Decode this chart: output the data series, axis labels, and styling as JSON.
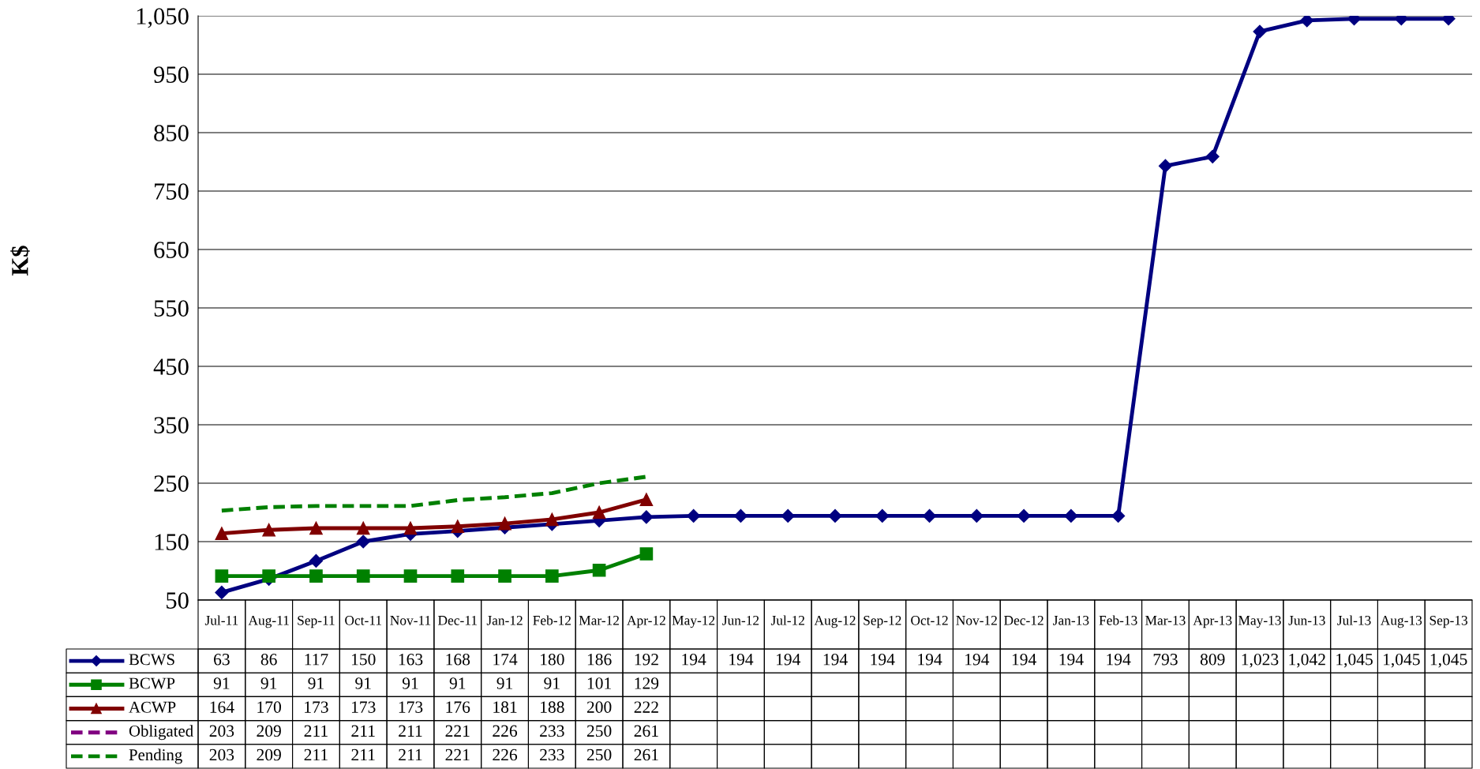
{
  "chart_data": {
    "type": "line",
    "ylabel": "K$",
    "categories": [
      "Jul-11",
      "Aug-11",
      "Sep-11",
      "Oct-11",
      "Nov-11",
      "Dec-11",
      "Jan-12",
      "Feb-12",
      "Mar-12",
      "Apr-12",
      "May-12",
      "Jun-12",
      "Jul-12",
      "Aug-12",
      "Sep-12",
      "Oct-12",
      "Nov-12",
      "Dec-12",
      "Jan-13",
      "Feb-13",
      "Mar-13",
      "Apr-13",
      "May-13",
      "Jun-13",
      "Jul-13",
      "Aug-13",
      "Sep-13"
    ],
    "series": [
      {
        "name": "BCWS",
        "color": "#000080",
        "marker": "diamond",
        "line_style": "solid",
        "values": [
          63,
          86,
          117,
          150,
          163,
          168,
          174,
          180,
          186,
          192,
          194,
          194,
          194,
          194,
          194,
          194,
          194,
          194,
          194,
          194,
          793,
          809,
          1023,
          1042,
          1045,
          1045,
          1045
        ],
        "value_labels": [
          "63",
          "86",
          "117",
          "150",
          "163",
          "168",
          "174",
          "180",
          "186",
          "192",
          "194",
          "194",
          "194",
          "194",
          "194",
          "194",
          "194",
          "194",
          "194",
          "194",
          "793",
          "809",
          "1,023",
          "1,042",
          "1,045",
          "1,045",
          "1,045"
        ]
      },
      {
        "name": "BCWP",
        "color": "#008000",
        "marker": "square",
        "line_style": "solid",
        "values": [
          91,
          91,
          91,
          91,
          91,
          91,
          91,
          91,
          101,
          129,
          null,
          null,
          null,
          null,
          null,
          null,
          null,
          null,
          null,
          null,
          null,
          null,
          null,
          null,
          null,
          null,
          null
        ],
        "value_labels": [
          "91",
          "91",
          "91",
          "91",
          "91",
          "91",
          "91",
          "91",
          "101",
          "129",
          null,
          null,
          null,
          null,
          null,
          null,
          null,
          null,
          null,
          null,
          null,
          null,
          null,
          null,
          null,
          null,
          null
        ]
      },
      {
        "name": "ACWP",
        "color": "#800000",
        "marker": "triangle",
        "line_style": "solid",
        "values": [
          164,
          170,
          173,
          173,
          173,
          176,
          181,
          188,
          200,
          222,
          null,
          null,
          null,
          null,
          null,
          null,
          null,
          null,
          null,
          null,
          null,
          null,
          null,
          null,
          null,
          null,
          null
        ],
        "value_labels": [
          "164",
          "170",
          "173",
          "173",
          "173",
          "176",
          "181",
          "188",
          "200",
          "222",
          null,
          null,
          null,
          null,
          null,
          null,
          null,
          null,
          null,
          null,
          null,
          null,
          null,
          null,
          null,
          null,
          null
        ]
      },
      {
        "name": "Obligated",
        "color": "#800080",
        "marker": "none",
        "line_style": "dashed",
        "values": [
          null,
          null,
          null,
          null,
          null,
          null,
          null,
          null,
          null,
          null,
          null,
          null,
          null,
          null,
          null,
          null,
          null,
          null,
          null,
          null,
          null,
          null,
          null,
          null,
          null,
          null,
          null
        ],
        "value_labels": [
          "203",
          "209",
          "211",
          "211",
          "211",
          "221",
          "226",
          "233",
          "250",
          "261",
          null,
          null,
          null,
          null,
          null,
          null,
          null,
          null,
          null,
          null,
          null,
          null,
          null,
          null,
          null,
          null,
          null
        ]
      },
      {
        "name": "Pending",
        "color": "#008000",
        "marker": "none",
        "line_style": "dashed",
        "values": [
          203,
          209,
          211,
          211,
          211,
          221,
          226,
          233,
          250,
          261,
          null,
          null,
          null,
          null,
          null,
          null,
          null,
          null,
          null,
          null,
          null,
          null,
          null,
          null,
          null,
          null,
          null
        ],
        "value_labels": [
          "203",
          "209",
          "211",
          "211",
          "211",
          "221",
          "226",
          "233",
          "250",
          "261",
          null,
          null,
          null,
          null,
          null,
          null,
          null,
          null,
          null,
          null,
          null,
          null,
          null,
          null,
          null,
          null,
          null
        ]
      }
    ],
    "ylim": [
      50,
      1050
    ],
    "yticks": [
      50,
      150,
      250,
      350,
      450,
      550,
      650,
      750,
      850,
      950,
      {
        "value": 1050,
        "label": "1,050"
      }
    ],
    "grid": "y",
    "legend": "bottom left"
  }
}
